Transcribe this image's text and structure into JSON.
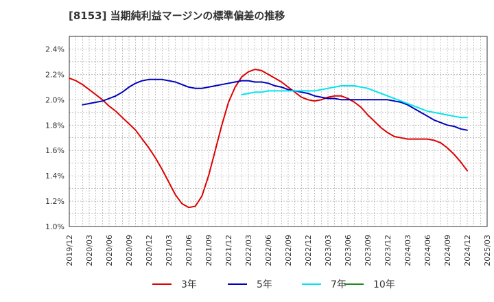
{
  "chart_data": {
    "type": "line",
    "title": "[8153]  当期純利益マージンの標準偏差の推移",
    "xlabel": "",
    "ylabel": "",
    "x_ticks": [
      "2019/12",
      "2020/03",
      "2020/06",
      "2020/09",
      "2020/12",
      "2021/03",
      "2021/06",
      "2021/09",
      "2021/12",
      "2022/03",
      "2022/06",
      "2022/09",
      "2022/12",
      "2023/03",
      "2023/06",
      "2023/09",
      "2023/12",
      "2024/03",
      "2024/06",
      "2024/09",
      "2024/12",
      "2025/03"
    ],
    "y_ticks": [
      "1.0%",
      "1.2%",
      "1.4%",
      "1.6%",
      "1.8%",
      "2.0%",
      "2.2%",
      "2.4%"
    ],
    "xlim": [
      "2019/12",
      "2025/03"
    ],
    "ylim": [
      1.0,
      2.5
    ],
    "grid": true,
    "legend_position": "bottom",
    "series": [
      {
        "name": "3年",
        "color": "#dd0000",
        "points": [
          [
            "2019/12",
            2.17
          ],
          [
            "2020/01",
            2.15
          ],
          [
            "2020/02",
            2.12
          ],
          [
            "2020/03",
            2.08
          ],
          [
            "2020/04",
            2.04
          ],
          [
            "2020/05",
            2.0
          ],
          [
            "2020/06",
            1.95
          ],
          [
            "2020/07",
            1.91
          ],
          [
            "2020/08",
            1.86
          ],
          [
            "2020/09",
            1.81
          ],
          [
            "2020/10",
            1.76
          ],
          [
            "2020/11",
            1.69
          ],
          [
            "2020/12",
            1.62
          ],
          [
            "2021/01",
            1.54
          ],
          [
            "2021/02",
            1.45
          ],
          [
            "2021/03",
            1.35
          ],
          [
            "2021/04",
            1.25
          ],
          [
            "2021/05",
            1.18
          ],
          [
            "2021/06",
            1.15
          ],
          [
            "2021/07",
            1.16
          ],
          [
            "2021/08",
            1.24
          ],
          [
            "2021/09",
            1.4
          ],
          [
            "2021/10",
            1.6
          ],
          [
            "2021/11",
            1.8
          ],
          [
            "2021/12",
            1.98
          ],
          [
            "2022/01",
            2.1
          ],
          [
            "2022/02",
            2.18
          ],
          [
            "2022/03",
            2.22
          ],
          [
            "2022/04",
            2.24
          ],
          [
            "2022/05",
            2.23
          ],
          [
            "2022/06",
            2.2
          ],
          [
            "2022/07",
            2.17
          ],
          [
            "2022/08",
            2.14
          ],
          [
            "2022/09",
            2.1
          ],
          [
            "2022/10",
            2.06
          ],
          [
            "2022/11",
            2.02
          ],
          [
            "2022/12",
            2.0
          ],
          [
            "2023/01",
            1.99
          ],
          [
            "2023/02",
            2.0
          ],
          [
            "2023/03",
            2.02
          ],
          [
            "2023/04",
            2.03
          ],
          [
            "2023/05",
            2.03
          ],
          [
            "2023/06",
            2.01
          ],
          [
            "2023/07",
            1.98
          ],
          [
            "2023/08",
            1.94
          ],
          [
            "2023/09",
            1.88
          ],
          [
            "2023/10",
            1.83
          ],
          [
            "2023/11",
            1.78
          ],
          [
            "2023/12",
            1.74
          ],
          [
            "2024/01",
            1.71
          ],
          [
            "2024/02",
            1.7
          ],
          [
            "2024/03",
            1.69
          ],
          [
            "2024/04",
            1.69
          ],
          [
            "2024/05",
            1.69
          ],
          [
            "2024/06",
            1.69
          ],
          [
            "2024/07",
            1.68
          ],
          [
            "2024/08",
            1.66
          ],
          [
            "2024/09",
            1.62
          ],
          [
            "2024/10",
            1.57
          ],
          [
            "2024/11",
            1.51
          ],
          [
            "2024/12",
            1.44
          ]
        ]
      },
      {
        "name": "5年",
        "color": "#0000bb",
        "points": [
          [
            "2020/02",
            1.96
          ],
          [
            "2020/03",
            1.97
          ],
          [
            "2020/04",
            1.98
          ],
          [
            "2020/05",
            1.99
          ],
          [
            "2020/06",
            2.01
          ],
          [
            "2020/07",
            2.03
          ],
          [
            "2020/08",
            2.06
          ],
          [
            "2020/09",
            2.1
          ],
          [
            "2020/10",
            2.13
          ],
          [
            "2020/11",
            2.15
          ],
          [
            "2020/12",
            2.16
          ],
          [
            "2021/01",
            2.16
          ],
          [
            "2021/02",
            2.16
          ],
          [
            "2021/03",
            2.15
          ],
          [
            "2021/04",
            2.14
          ],
          [
            "2021/05",
            2.12
          ],
          [
            "2021/06",
            2.1
          ],
          [
            "2021/07",
            2.09
          ],
          [
            "2021/08",
            2.09
          ],
          [
            "2021/09",
            2.1
          ],
          [
            "2021/10",
            2.11
          ],
          [
            "2021/11",
            2.12
          ],
          [
            "2021/12",
            2.13
          ],
          [
            "2022/01",
            2.14
          ],
          [
            "2022/02",
            2.15
          ],
          [
            "2022/03",
            2.15
          ],
          [
            "2022/04",
            2.14
          ],
          [
            "2022/05",
            2.14
          ],
          [
            "2022/06",
            2.13
          ],
          [
            "2022/07",
            2.11
          ],
          [
            "2022/08",
            2.1
          ],
          [
            "2022/09",
            2.08
          ],
          [
            "2022/10",
            2.07
          ],
          [
            "2022/11",
            2.06
          ],
          [
            "2022/12",
            2.05
          ],
          [
            "2023/01",
            2.03
          ],
          [
            "2023/02",
            2.02
          ],
          [
            "2023/03",
            2.01
          ],
          [
            "2023/04",
            2.01
          ],
          [
            "2023/05",
            2.0
          ],
          [
            "2023/06",
            2.0
          ],
          [
            "2023/07",
            2.0
          ],
          [
            "2023/08",
            2.0
          ],
          [
            "2023/09",
            2.0
          ],
          [
            "2023/10",
            2.0
          ],
          [
            "2023/11",
            2.0
          ],
          [
            "2023/12",
            2.0
          ],
          [
            "2024/01",
            1.99
          ],
          [
            "2024/02",
            1.98
          ],
          [
            "2024/03",
            1.96
          ],
          [
            "2024/04",
            1.93
          ],
          [
            "2024/05",
            1.9
          ],
          [
            "2024/06",
            1.87
          ],
          [
            "2024/07",
            1.84
          ],
          [
            "2024/08",
            1.82
          ],
          [
            "2024/09",
            1.8
          ],
          [
            "2024/10",
            1.79
          ],
          [
            "2024/11",
            1.77
          ],
          [
            "2024/12",
            1.76
          ]
        ]
      },
      {
        "name": "7年",
        "color": "#00e5ee",
        "points": [
          [
            "2022/02",
            2.04
          ],
          [
            "2022/03",
            2.05
          ],
          [
            "2022/04",
            2.06
          ],
          [
            "2022/05",
            2.06
          ],
          [
            "2022/06",
            2.07
          ],
          [
            "2022/07",
            2.07
          ],
          [
            "2022/08",
            2.07
          ],
          [
            "2022/09",
            2.07
          ],
          [
            "2022/10",
            2.07
          ],
          [
            "2022/11",
            2.07
          ],
          [
            "2022/12",
            2.07
          ],
          [
            "2023/01",
            2.07
          ],
          [
            "2023/02",
            2.08
          ],
          [
            "2023/03",
            2.09
          ],
          [
            "2023/04",
            2.1
          ],
          [
            "2023/05",
            2.11
          ],
          [
            "2023/06",
            2.11
          ],
          [
            "2023/07",
            2.11
          ],
          [
            "2023/08",
            2.1
          ],
          [
            "2023/09",
            2.09
          ],
          [
            "2023/10",
            2.07
          ],
          [
            "2023/11",
            2.05
          ],
          [
            "2023/12",
            2.03
          ],
          [
            "2024/01",
            2.01
          ],
          [
            "2024/02",
            1.99
          ],
          [
            "2024/03",
            1.97
          ],
          [
            "2024/04",
            1.95
          ],
          [
            "2024/05",
            1.93
          ],
          [
            "2024/06",
            1.91
          ],
          [
            "2024/07",
            1.9
          ],
          [
            "2024/08",
            1.89
          ],
          [
            "2024/09",
            1.88
          ],
          [
            "2024/10",
            1.87
          ],
          [
            "2024/11",
            1.86
          ],
          [
            "2024/12",
            1.86
          ]
        ]
      },
      {
        "name": "10年",
        "color": "#228822",
        "points": []
      }
    ]
  }
}
